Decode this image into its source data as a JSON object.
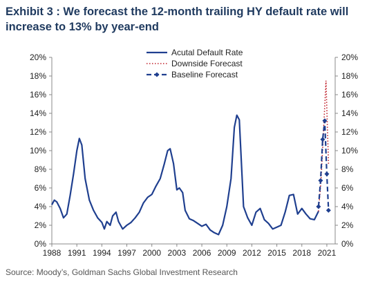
{
  "title": "Exhibit 3 : We forecast the 12-month trailing HY default rate will increase to 13% by year-end",
  "source": "Source: Moody’s, Goldman Sachs Global Investment Research",
  "colors": {
    "actual": "#1f3f8f",
    "downside": "#c0202a",
    "baseline": "#1f3f8f"
  },
  "chart_data": {
    "type": "line",
    "xlim": [
      1988,
      2022
    ],
    "ylim": [
      0,
      20
    ],
    "x_ticks": [
      1988,
      1991,
      1994,
      1997,
      2000,
      2003,
      2006,
      2009,
      2012,
      2015,
      2018,
      2021
    ],
    "y_ticks": [
      "0%",
      "2%",
      "4%",
      "6%",
      "8%",
      "10%",
      "12%",
      "14%",
      "16%",
      "18%",
      "20%"
    ],
    "legend": [
      "Acutal Default Rate",
      "Downside Forecast",
      "Baseline Forecast"
    ],
    "legend_position": "top-center",
    "series": [
      {
        "name": "Acutal Default Rate",
        "style": "solid",
        "x": [
          1988.0,
          1988.3,
          1988.6,
          1989.0,
          1989.4,
          1989.8,
          1990.2,
          1990.6,
          1991.0,
          1991.3,
          1991.6,
          1992.0,
          1992.5,
          1993.0,
          1993.5,
          1994.0,
          1994.3,
          1994.6,
          1995.0,
          1995.3,
          1995.7,
          1996.0,
          1996.5,
          1997.0,
          1997.5,
          1998.0,
          1998.5,
          1999.0,
          1999.5,
          2000.0,
          2000.5,
          2001.0,
          2001.5,
          2001.9,
          2002.2,
          2002.6,
          2003.0,
          2003.3,
          2003.7,
          2004.0,
          2004.5,
          2005.0,
          2005.5,
          2006.0,
          2006.5,
          2007.0,
          2007.5,
          2008.0,
          2008.5,
          2009.0,
          2009.5,
          2009.9,
          2010.2,
          2010.5,
          2011.0,
          2011.5,
          2012.0,
          2012.5,
          2013.0,
          2013.5,
          2014.0,
          2014.5,
          2015.0,
          2015.5,
          2016.0,
          2016.5,
          2017.0,
          2017.5,
          2018.0,
          2018.5,
          2019.0,
          2019.5,
          2020.0
        ],
        "y": [
          4.2,
          4.7,
          4.5,
          3.8,
          2.8,
          3.2,
          5.2,
          7.5,
          10.0,
          11.3,
          10.6,
          7.0,
          4.7,
          3.6,
          2.8,
          2.3,
          1.6,
          2.4,
          2.0,
          3.0,
          3.4,
          2.4,
          1.6,
          2.0,
          2.3,
          2.8,
          3.4,
          4.4,
          5.0,
          5.3,
          6.2,
          7.0,
          8.6,
          10.0,
          10.2,
          8.6,
          5.8,
          6.0,
          5.5,
          3.6,
          2.7,
          2.5,
          2.2,
          1.9,
          2.1,
          1.5,
          1.2,
          1.0,
          2.0,
          4.0,
          7.0,
          12.5,
          13.8,
          13.3,
          4.0,
          2.8,
          2.0,
          3.4,
          3.8,
          2.6,
          2.2,
          1.6,
          1.8,
          2.0,
          3.4,
          5.2,
          5.3,
          3.2,
          3.8,
          3.2,
          2.7,
          2.6,
          3.5
        ]
      },
      {
        "name": "Downside Forecast",
        "style": "dotted",
        "x": [
          2020.0,
          2020.3,
          2020.6,
          2020.9,
          2021.2
        ],
        "y": [
          3.5,
          6.8,
          12.0,
          17.5,
          8.5
        ]
      },
      {
        "name": "Baseline Forecast",
        "style": "dashed-diamond",
        "x": [
          2020.0,
          2020.25,
          2020.5,
          2020.75,
          2021.0,
          2021.2
        ],
        "y": [
          4.0,
          6.8,
          11.2,
          13.2,
          7.5,
          3.6
        ]
      }
    ]
  }
}
